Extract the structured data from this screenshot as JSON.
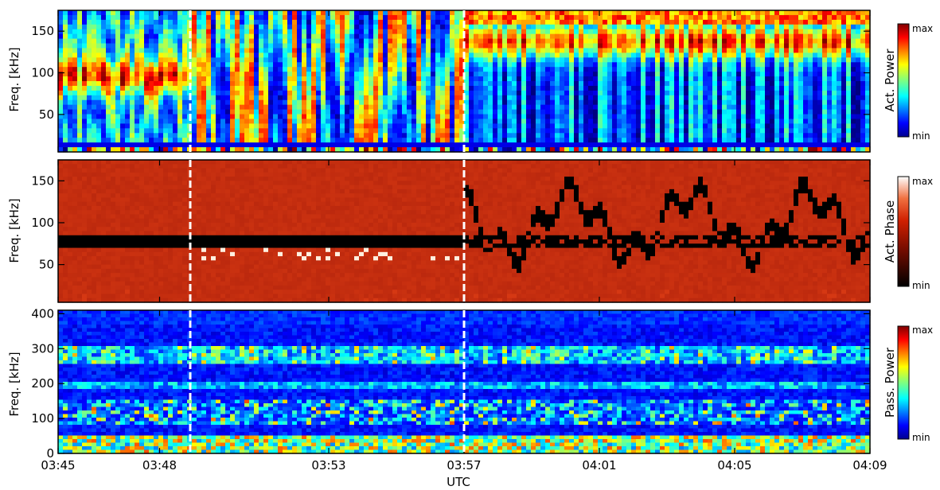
{
  "chart_data": {
    "type": "heatmap",
    "x_axis": {
      "label": "UTC",
      "range": [
        "03:45",
        "04:09"
      ],
      "tick_labels": [
        "03:45",
        "03:48",
        "03:53",
        "03:57",
        "04:01",
        "04:05",
        "04:09"
      ]
    },
    "event_markers": [
      "03:49",
      "03:57"
    ],
    "panels": [
      {
        "quantity": "Act. Power",
        "ylabel": "Freq. [kHz]",
        "ylim": [
          5,
          175
        ],
        "yticks": [
          50,
          100,
          150
        ],
        "colorbar": {
          "label": "Act. Power",
          "min_label": "min",
          "max_label": "max",
          "colormap": "jet"
        }
      },
      {
        "quantity": "Act. Phase",
        "ylabel": "Freq. [kHz]",
        "ylim": [
          5,
          175
        ],
        "yticks": [
          50,
          100,
          150
        ],
        "colorbar": {
          "label": "Act. Phase",
          "min_label": "min",
          "max_label": "max",
          "colormap": "hot"
        }
      },
      {
        "quantity": "Pass. Power",
        "ylabel": "Freq. [kHz]",
        "ylim": [
          0,
          410
        ],
        "yticks": [
          0,
          100,
          200,
          300,
          400
        ],
        "colorbar": {
          "label": "Pass. Power",
          "min_label": "min",
          "max_label": "max",
          "colormap": "jet"
        }
      }
    ]
  }
}
